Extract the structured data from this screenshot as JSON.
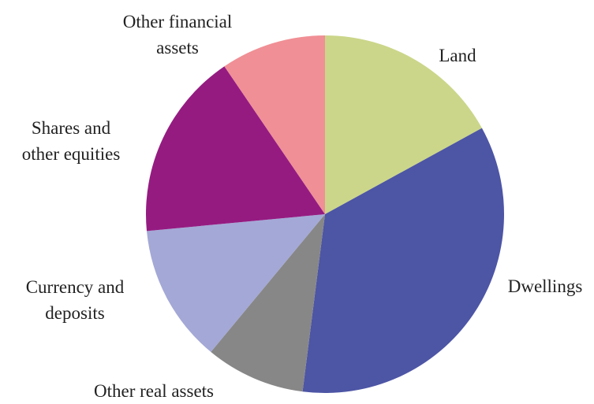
{
  "chart_data": {
    "type": "pie",
    "categories": [
      "Land",
      "Dwellings",
      "Other real assets",
      "Currency and deposits",
      "Shares and other equities",
      "Other financial assets"
    ],
    "values": [
      17,
      35,
      9,
      12.5,
      17,
      9.5
    ],
    "colors": [
      "#cbd68a",
      "#4d55a5",
      "#878787",
      "#a4a8d6",
      "#951b81",
      "#f08f95"
    ]
  }
}
